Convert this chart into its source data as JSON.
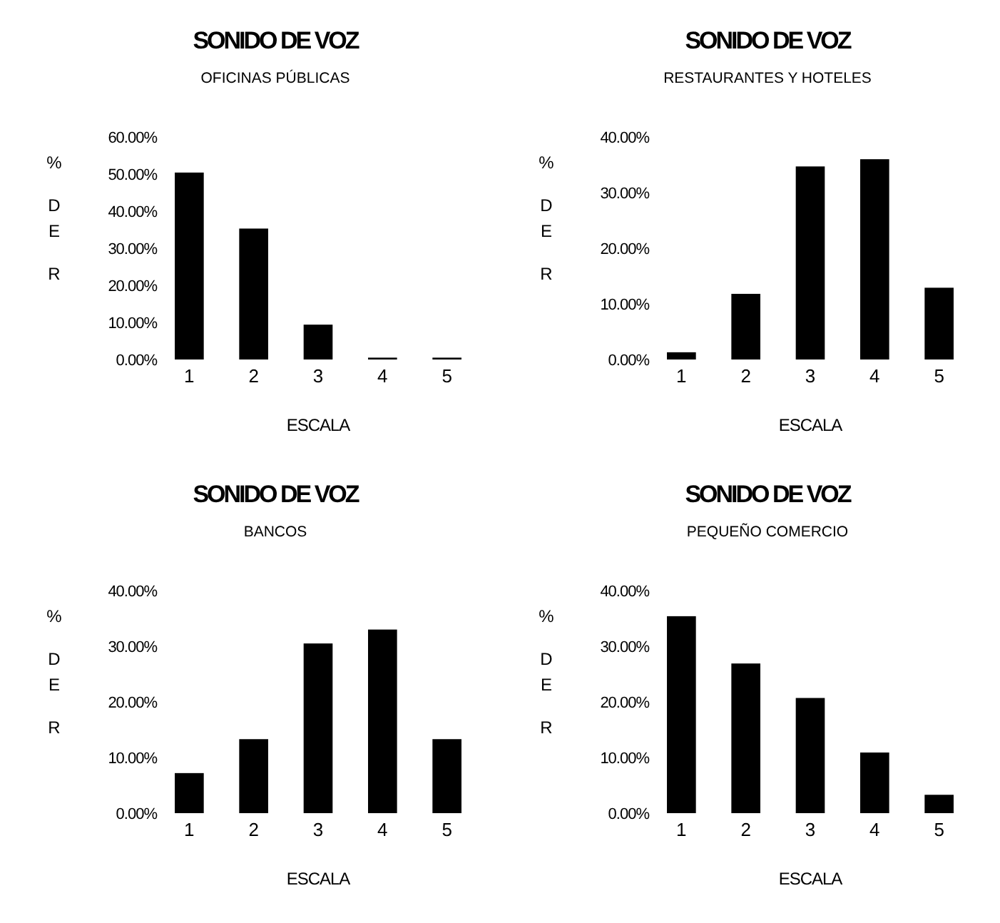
{
  "chart_data": [
    {
      "type": "bar",
      "title": "SONIDO DE VOZ",
      "subtitle": "OFICINAS PÚBLICAS",
      "xlabel": "ESCALA",
      "ylabel": "% DE R",
      "categories": [
        "1",
        "2",
        "3",
        "4",
        "5"
      ],
      "values": [
        50.4,
        35.3,
        9.4,
        0.5,
        0.5
      ],
      "color": "#000000",
      "ylim": [
        0,
        60
      ],
      "yticks": [
        {
          "value": 0,
          "label": "0.00%"
        },
        {
          "value": 10,
          "label": "10.00%"
        },
        {
          "value": 20,
          "label": "20.00%"
        },
        {
          "value": 30,
          "label": "30.00%"
        },
        {
          "value": 40,
          "label": "40.00%"
        },
        {
          "value": 50,
          "label": "50.00%"
        },
        {
          "value": 60,
          "label": "60.00%"
        }
      ]
    },
    {
      "type": "bar",
      "title": "SONIDO DE VOZ",
      "subtitle": "RESTAURANTES Y HOTELES",
      "xlabel": "ESCALA",
      "ylabel": "% DE R",
      "categories": [
        "1",
        "2",
        "3",
        "4",
        "5"
      ],
      "values": [
        1.3,
        11.8,
        34.7,
        36.0,
        12.9
      ],
      "color": "#000000",
      "ylim": [
        0,
        40
      ],
      "yticks": [
        {
          "value": 0,
          "label": "0.00%"
        },
        {
          "value": 10,
          "label": "10.00%"
        },
        {
          "value": 20,
          "label": "20.00%"
        },
        {
          "value": 30,
          "label": "30.00%"
        },
        {
          "value": 40,
          "label": "40.00%"
        }
      ]
    },
    {
      "type": "bar",
      "title": "SONIDO DE VOZ",
      "subtitle": "BANCOS",
      "xlabel": "ESCALA",
      "ylabel": "% DE R",
      "categories": [
        "1",
        "2",
        "3",
        "4",
        "5"
      ],
      "values": [
        7.2,
        13.3,
        30.5,
        33.0,
        13.3
      ],
      "color": "#000000",
      "ylim": [
        0,
        40
      ],
      "yticks": [
        {
          "value": 0,
          "label": "0.00%"
        },
        {
          "value": 10,
          "label": "10.00%"
        },
        {
          "value": 20,
          "label": "20.00%"
        },
        {
          "value": 30,
          "label": "30.00%"
        },
        {
          "value": 40,
          "label": "40.00%"
        }
      ]
    },
    {
      "type": "bar",
      "title": "SONIDO DE VOZ",
      "subtitle": "PEQUEÑO COMERCIO",
      "xlabel": "ESCALA",
      "ylabel": "% DE R",
      "categories": [
        "1",
        "2",
        "3",
        "4",
        "5"
      ],
      "values": [
        35.4,
        26.9,
        20.7,
        10.9,
        3.3
      ],
      "color": "#000000",
      "ylim": [
        0,
        40
      ],
      "yticks": [
        {
          "value": 0,
          "label": "0.00%"
        },
        {
          "value": 10,
          "label": "10.00%"
        },
        {
          "value": 20,
          "label": "20.00%"
        },
        {
          "value": 30,
          "label": "30.00%"
        },
        {
          "value": 40,
          "label": "40.00%"
        }
      ]
    }
  ]
}
